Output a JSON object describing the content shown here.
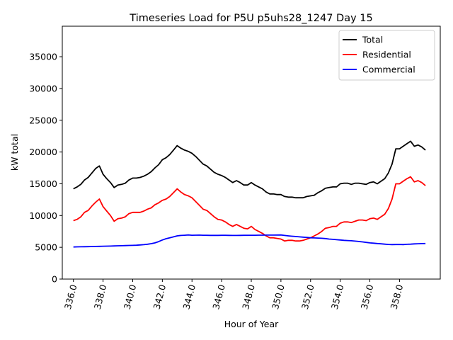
{
  "chart_data": {
    "type": "line",
    "title": "Timeseries Load for P5U p5uhs28_1247  Day 15",
    "xlabel": "Hour of Year",
    "ylabel": "kW total",
    "xlim": [
      335.25,
      360.75
    ],
    "ylim": [
      0,
      39800
    ],
    "x_ticks": [
      336,
      338,
      340,
      342,
      344,
      346,
      348,
      350,
      352,
      354,
      356,
      358
    ],
    "x_tick_labels": [
      "336.0",
      "338.0",
      "340.0",
      "342.0",
      "344.0",
      "346.0",
      "348.0",
      "350.0",
      "352.0",
      "354.0",
      "356.0",
      "358.0"
    ],
    "y_ticks": [
      0,
      5000,
      10000,
      15000,
      20000,
      25000,
      30000,
      35000
    ],
    "y_tick_labels": [
      "0",
      "5000",
      "10000",
      "15000",
      "20000",
      "25000",
      "30000",
      "35000"
    ],
    "grid": false,
    "legend_position": "top-right",
    "x": [
      336.0,
      336.25,
      336.5,
      336.75,
      337.0,
      337.25,
      337.5,
      337.75,
      338.0,
      338.25,
      338.5,
      338.75,
      339.0,
      339.25,
      339.5,
      339.75,
      340.0,
      340.25,
      340.5,
      340.75,
      341.0,
      341.25,
      341.5,
      341.75,
      342.0,
      342.25,
      342.5,
      342.75,
      343.0,
      343.25,
      343.5,
      343.75,
      344.0,
      344.25,
      344.5,
      344.75,
      345.0,
      345.25,
      345.5,
      345.75,
      346.0,
      346.25,
      346.5,
      346.75,
      347.0,
      347.25,
      347.5,
      347.75,
      348.0,
      348.25,
      348.5,
      348.75,
      349.0,
      349.25,
      349.5,
      349.75,
      350.0,
      350.25,
      350.5,
      350.75,
      351.0,
      351.25,
      351.5,
      351.75,
      352.0,
      352.25,
      352.5,
      352.75,
      353.0,
      353.25,
      353.5,
      353.75,
      354.0,
      354.25,
      354.5,
      354.75,
      355.0,
      355.25,
      355.5,
      355.75,
      356.0,
      356.25,
      356.5,
      356.75,
      357.0,
      357.25,
      357.5,
      357.75,
      358.0,
      358.25,
      358.5,
      358.75,
      359.0,
      359.25,
      359.5,
      359.75
    ],
    "series": [
      {
        "name": "Total",
        "color": "#000000",
        "values": [
          14200,
          14500,
          14900,
          15600,
          16000,
          16700,
          17400,
          17800,
          16500,
          15800,
          15200,
          14400,
          14800,
          14900,
          15100,
          15600,
          15900,
          15900,
          16000,
          16200,
          16500,
          16900,
          17500,
          18000,
          18800,
          19100,
          19600,
          20300,
          21000,
          20600,
          20300,
          20100,
          19800,
          19300,
          18700,
          18100,
          17800,
          17300,
          16800,
          16500,
          16300,
          16000,
          15600,
          15200,
          15500,
          15200,
          14800,
          14800,
          15200,
          14800,
          14500,
          14200,
          13700,
          13400,
          13400,
          13300,
          13300,
          13000,
          12900,
          12900,
          12800,
          12800,
          12800,
          13000,
          13100,
          13200,
          13600,
          13900,
          14300,
          14400,
          14500,
          14500,
          15000,
          15100,
          15100,
          14900,
          15100,
          15100,
          15000,
          14900,
          15200,
          15300,
          15000,
          15400,
          15800,
          16700,
          18100,
          20500,
          20500,
          20900,
          21300,
          21700,
          20900,
          21100,
          20800,
          20300
        ]
      },
      {
        "name": "Residential",
        "color": "#ff0000",
        "values": [
          9200,
          9400,
          9800,
          10500,
          10800,
          11500,
          12100,
          12600,
          11400,
          10700,
          10000,
          9100,
          9500,
          9600,
          9800,
          10300,
          10500,
          10500,
          10500,
          10700,
          11000,
          11200,
          11700,
          12000,
          12400,
          12600,
          13000,
          13600,
          14200,
          13700,
          13300,
          13100,
          12800,
          12200,
          11600,
          11000,
          10800,
          10300,
          9800,
          9400,
          9300,
          9000,
          8600,
          8300,
          8600,
          8300,
          8000,
          7900,
          8300,
          7800,
          7500,
          7200,
          6800,
          6500,
          6500,
          6400,
          6300,
          6000,
          6100,
          6100,
          6000,
          6000,
          6100,
          6300,
          6500,
          6800,
          7100,
          7500,
          8000,
          8100,
          8300,
          8300,
          8800,
          9000,
          9000,
          8900,
          9100,
          9300,
          9300,
          9200,
          9500,
          9600,
          9400,
          9800,
          10200,
          11100,
          12600,
          15000,
          15000,
          15400,
          15800,
          16100,
          15300,
          15500,
          15200,
          14700
        ]
      },
      {
        "name": "Commercial",
        "color": "#0000ff",
        "values": [
          5050,
          5070,
          5080,
          5090,
          5110,
          5120,
          5140,
          5150,
          5170,
          5180,
          5200,
          5220,
          5240,
          5250,
          5270,
          5290,
          5310,
          5330,
          5370,
          5420,
          5490,
          5570,
          5700,
          5900,
          6150,
          6350,
          6500,
          6650,
          6800,
          6870,
          6900,
          6950,
          6900,
          6910,
          6920,
          6900,
          6890,
          6880,
          6880,
          6880,
          6890,
          6890,
          6880,
          6870,
          6870,
          6880,
          6890,
          6890,
          6900,
          6900,
          6910,
          6910,
          6920,
          6920,
          6920,
          6930,
          6950,
          6870,
          6800,
          6750,
          6700,
          6650,
          6600,
          6550,
          6500,
          6480,
          6450,
          6420,
          6380,
          6300,
          6250,
          6200,
          6150,
          6100,
          6070,
          6030,
          5980,
          5920,
          5850,
          5770,
          5700,
          5650,
          5600,
          5550,
          5500,
          5450,
          5430,
          5440,
          5450,
          5430,
          5470,
          5500,
          5540,
          5560,
          5580,
          5600
        ]
      }
    ]
  }
}
